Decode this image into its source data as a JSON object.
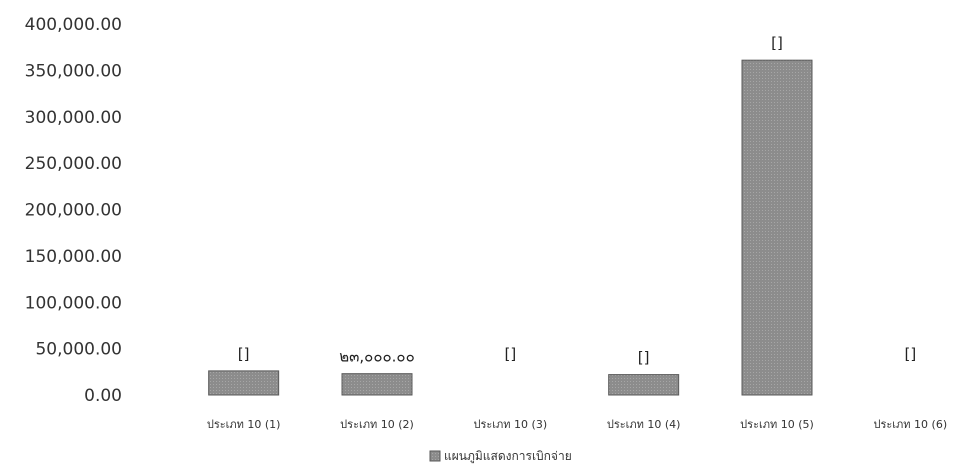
{
  "chart_data": {
    "type": "bar",
    "categories": [
      "ประเภท 10 (1)",
      "ประเภท 10 (2)",
      "ประเภท 10 (3)",
      "ประเภท 10 (4)",
      "ประเภท 10 (5)",
      "ประเภท 10 (6)"
    ],
    "series": [
      {
        "name": "แผนภูมิแสดงการเบิกจ่าย",
        "values": [
          26000,
          23000,
          0,
          22000,
          361000,
          0
        ],
        "data_labels": [
          "[]",
          "๒๓,๐๐๐.๐๐",
          "[]",
          "[]",
          "[]",
          "[]"
        ]
      }
    ],
    "y_ticks": [
      "0.00",
      "50,000.00",
      "100,000.00",
      "150,000.00",
      "200,000.00",
      "250,000.00",
      "300,000.00",
      "350,000.00",
      "400,000.00"
    ],
    "ylim": [
      0,
      400000
    ],
    "grid": false,
    "legend_position": "bottom",
    "bar_color": "#8c8c8c",
    "bar_stroke": "#5a5a5a"
  }
}
